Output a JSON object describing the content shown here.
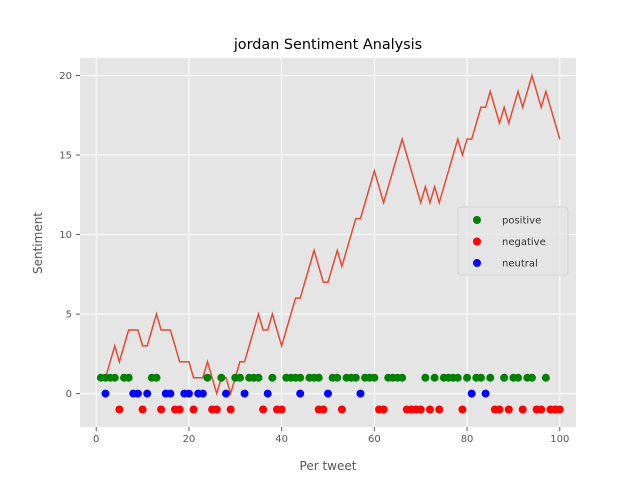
{
  "chart_data": {
    "type": "line+scatter",
    "title": "jordan Sentiment Analysis",
    "xlabel": "Per tweet",
    "ylabel": "Sentiment",
    "xlim": [
      -3.5,
      103.5
    ],
    "ylim": [
      -2.1,
      21.1
    ],
    "xticks": [
      0,
      20,
      40,
      60,
      80,
      100
    ],
    "yticks": [
      0,
      5,
      10,
      15,
      20
    ],
    "grid": true,
    "legend_position": "center-right",
    "colors": {
      "line": "#E24A33",
      "positive": "#008000",
      "negative": "#FF0000",
      "neutral": "#0000FF",
      "plot_bg": "#E5E5E5",
      "grid": "#FFFFFF"
    },
    "cumulative_line": {
      "x": [
        1,
        2,
        3,
        4,
        5,
        6,
        7,
        8,
        9,
        10,
        11,
        12,
        13,
        14,
        15,
        16,
        17,
        18,
        19,
        20,
        21,
        22,
        23,
        24,
        25,
        26,
        27,
        28,
        29,
        30,
        31,
        32,
        33,
        34,
        35,
        36,
        37,
        38,
        39,
        40,
        41,
        42,
        43,
        44,
        45,
        46,
        47,
        48,
        49,
        50,
        51,
        52,
        53,
        54,
        55,
        56,
        57,
        58,
        59,
        60,
        61,
        62,
        63,
        64,
        65,
        66,
        67,
        68,
        69,
        70,
        71,
        72,
        73,
        74,
        75,
        76,
        77,
        78,
        79,
        80,
        81,
        82,
        83,
        84,
        85,
        86,
        87,
        88,
        89,
        90,
        91,
        92,
        93,
        94,
        95,
        96,
        97,
        98,
        99,
        100
      ],
      "y": [
        1,
        1,
        2,
        3,
        2,
        3,
        4,
        4,
        4,
        3,
        3,
        4,
        5,
        4,
        4,
        4,
        3,
        2,
        2,
        2,
        1,
        1,
        1,
        2,
        1,
        0,
        1,
        1,
        0,
        1,
        2,
        2,
        3,
        4,
        5,
        4,
        4,
        5,
        4,
        3,
        4,
        5,
        6,
        6,
        7,
        8,
        9,
        8,
        7,
        7,
        8,
        9,
        8,
        9,
        10,
        11,
        11,
        12,
        13,
        14,
        13,
        12,
        13,
        14,
        15,
        16,
        15,
        14,
        13,
        12,
        13,
        12,
        13,
        12,
        13,
        14,
        15,
        16,
        15,
        16,
        16,
        17,
        18,
        18,
        19,
        18,
        17,
        18,
        17,
        18,
        19,
        18,
        19,
        20,
        19,
        18,
        19,
        18,
        17,
        16
      ]
    },
    "series": [
      {
        "name": "positive",
        "x": [
          1,
          2,
          3,
          4,
          6,
          7,
          12,
          13,
          24,
          27,
          30,
          31,
          33,
          34,
          35,
          38,
          41,
          42,
          43,
          44,
          46,
          47,
          48,
          51,
          52,
          54,
          55,
          56,
          58,
          59,
          60,
          63,
          64,
          65,
          66,
          71,
          73,
          75,
          76,
          77,
          78,
          80,
          82,
          83,
          85,
          88,
          90,
          91,
          93,
          94,
          97
        ],
        "y": [
          1,
          1,
          1,
          1,
          1,
          1,
          1,
          1,
          1,
          1,
          1,
          1,
          1,
          1,
          1,
          1,
          1,
          1,
          1,
          1,
          1,
          1,
          1,
          1,
          1,
          1,
          1,
          1,
          1,
          1,
          1,
          1,
          1,
          1,
          1,
          1,
          1,
          1,
          1,
          1,
          1,
          1,
          1,
          1,
          1,
          1,
          1,
          1,
          1,
          1,
          1
        ]
      },
      {
        "name": "negative",
        "x": [
          5,
          10,
          14,
          17,
          18,
          21,
          25,
          26,
          29,
          36,
          39,
          40,
          48,
          49,
          53,
          61,
          62,
          67,
          68,
          69,
          70,
          72,
          74,
          79,
          86,
          87,
          89,
          92,
          95,
          96,
          98,
          99,
          100
        ],
        "y": [
          -1,
          -1,
          -1,
          -1,
          -1,
          -1,
          -1,
          -1,
          -1,
          -1,
          -1,
          -1,
          -1,
          -1,
          -1,
          -1,
          -1,
          -1,
          -1,
          -1,
          -1,
          -1,
          -1,
          -1,
          -1,
          -1,
          -1,
          -1,
          -1,
          -1,
          -1,
          -1,
          -1
        ]
      },
      {
        "name": "neutral",
        "x": [
          2,
          8,
          9,
          11,
          15,
          16,
          19,
          20,
          22,
          23,
          28,
          32,
          37,
          44,
          50,
          57,
          81,
          84
        ],
        "y": [
          0,
          0,
          0,
          0,
          0,
          0,
          0,
          0,
          0,
          0,
          0,
          0,
          0,
          0,
          0,
          0,
          0,
          0
        ]
      }
    ]
  }
}
